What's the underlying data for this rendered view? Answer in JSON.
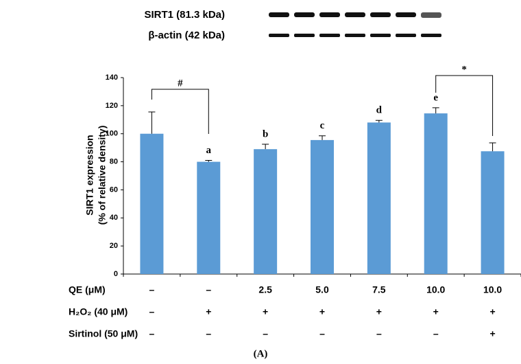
{
  "chart_data": {
    "type": "bar",
    "blot_labels": [
      "SIRT1 (81.3 kDa)",
      "β-actin (42 kDa)"
    ],
    "ylabel": [
      "SIRT1 expression",
      "(% of relative density)"
    ],
    "values": [
      100,
      80,
      89,
      95.5,
      108,
      114.5,
      87.5
    ],
    "errors": [
      15.5,
      1,
      3.5,
      3,
      1.5,
      4,
      6
    ],
    "color": "#5b9bd5",
    "group_letters": [
      null,
      "a",
      "b",
      "c",
      "d",
      "e",
      null
    ],
    "significance_marks": [
      "#",
      "*"
    ],
    "ylim": [
      0,
      140
    ],
    "yticks": [
      0,
      20,
      40,
      60,
      80,
      100,
      120,
      140
    ],
    "conditions": [
      {
        "label": "QE (μM)",
        "values": [
          "–",
          "–",
          "2.5",
          "5.0",
          "7.5",
          "10.0",
          "10.0"
        ]
      },
      {
        "label": "H₂O₂ (40 μM)",
        "values": [
          "–",
          "+",
          "+",
          "+",
          "+",
          "+",
          "+"
        ]
      },
      {
        "label": "Sirtinol (50 μM)",
        "values": [
          "–",
          "–",
          "–",
          "–",
          "–",
          "–",
          "+"
        ]
      }
    ],
    "panel_label": "(A)"
  }
}
